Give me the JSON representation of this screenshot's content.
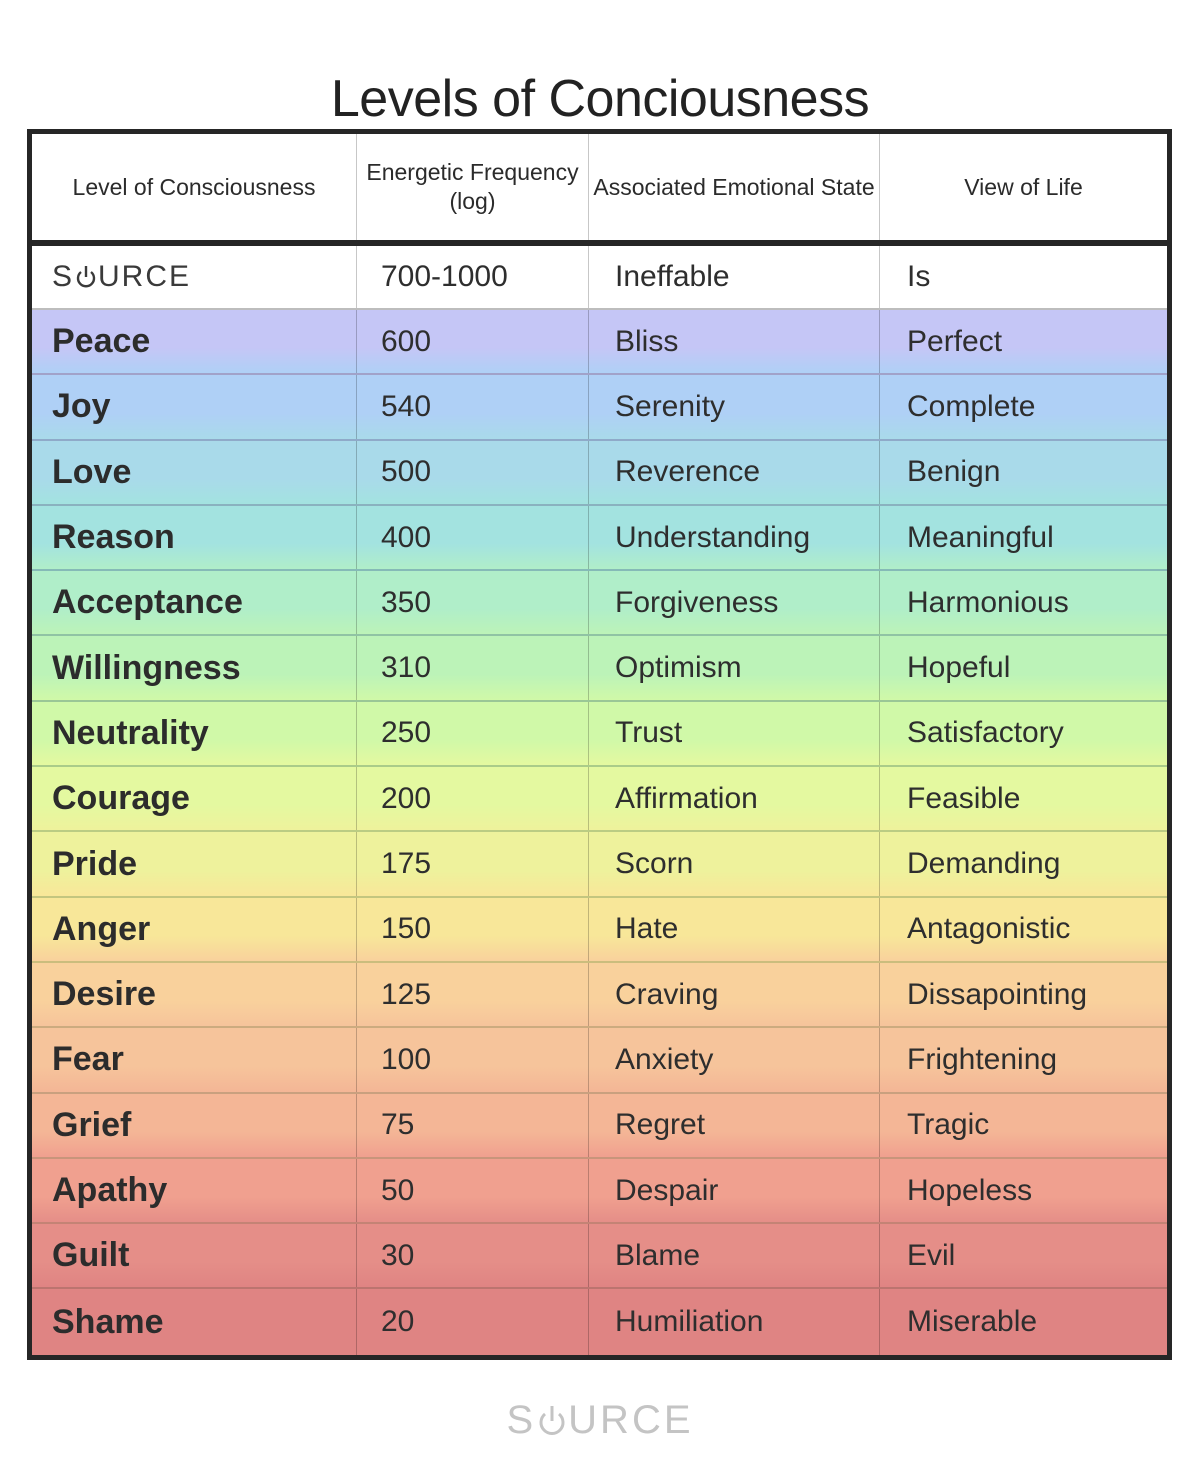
{
  "title": "Levels of Conciousness",
  "headers": [
    "Level of Consciousness",
    "Energetic Frequency (log)",
    "Associated Emotional State",
    "View of Life"
  ],
  "source_row": {
    "level": "SOURCE",
    "frequency": "700-1000",
    "emotion": "Ineffable",
    "view": "Is"
  },
  "rows": [
    {
      "level": "Peace",
      "frequency": "600",
      "emotion": "Bliss",
      "view": "Perfect",
      "color": "#c5c6f6"
    },
    {
      "level": "Joy",
      "frequency": "540",
      "emotion": "Serenity",
      "view": "Complete",
      "color": "#afd0f6"
    },
    {
      "level": "Love",
      "frequency": "500",
      "emotion": "Reverence",
      "view": "Benign",
      "color": "#a9daea"
    },
    {
      "level": "Reason",
      "frequency": "400",
      "emotion": "Understanding",
      "view": "Meaningful",
      "color": "#a3e3e0"
    },
    {
      "level": "Acceptance",
      "frequency": "350",
      "emotion": "Forgiveness",
      "view": "Harmonious",
      "color": "#b0eec9"
    },
    {
      "level": "Willingness",
      "frequency": "310",
      "emotion": "Optimism",
      "view": "Hopeful",
      "color": "#bcf3b8"
    },
    {
      "level": "Neutrality",
      "frequency": "250",
      "emotion": "Trust",
      "view": "Satisfactory",
      "color": "#d0f9a8"
    },
    {
      "level": "Courage",
      "frequency": "200",
      "emotion": "Affirmation",
      "view": "Feasible",
      "color": "#e4f9a0"
    },
    {
      "level": "Pride",
      "frequency": "175",
      "emotion": "Scorn",
      "view": "Demanding",
      "color": "#eef29c"
    },
    {
      "level": "Anger",
      "frequency": "150",
      "emotion": "Hate",
      "view": "Antagonistic",
      "color": "#f8e799"
    },
    {
      "level": "Desire",
      "frequency": "125",
      "emotion": "Craving",
      "view": "Dissapointing",
      "color": "#f9d19c"
    },
    {
      "level": "Fear",
      "frequency": "100",
      "emotion": "Anxiety",
      "view": "Frightening",
      "color": "#f6c49b"
    },
    {
      "level": "Grief",
      "frequency": "75",
      "emotion": "Regret",
      "view": "Tragic",
      "color": "#f4b696"
    },
    {
      "level": "Apathy",
      "frequency": "50",
      "emotion": "Despair",
      "view": "Hopeless",
      "color": "#f0a08f"
    },
    {
      "level": "Guilt",
      "frequency": "30",
      "emotion": "Blame",
      "view": "Evil",
      "color": "#e58e88"
    },
    {
      "level": "Shame",
      "frequency": "20",
      "emotion": "Humiliation",
      "view": "Miserable",
      "color": "#df8483"
    }
  ],
  "footer": {
    "logo_text": "SOURCE"
  },
  "icons": {
    "logo_o": "power-icon"
  }
}
